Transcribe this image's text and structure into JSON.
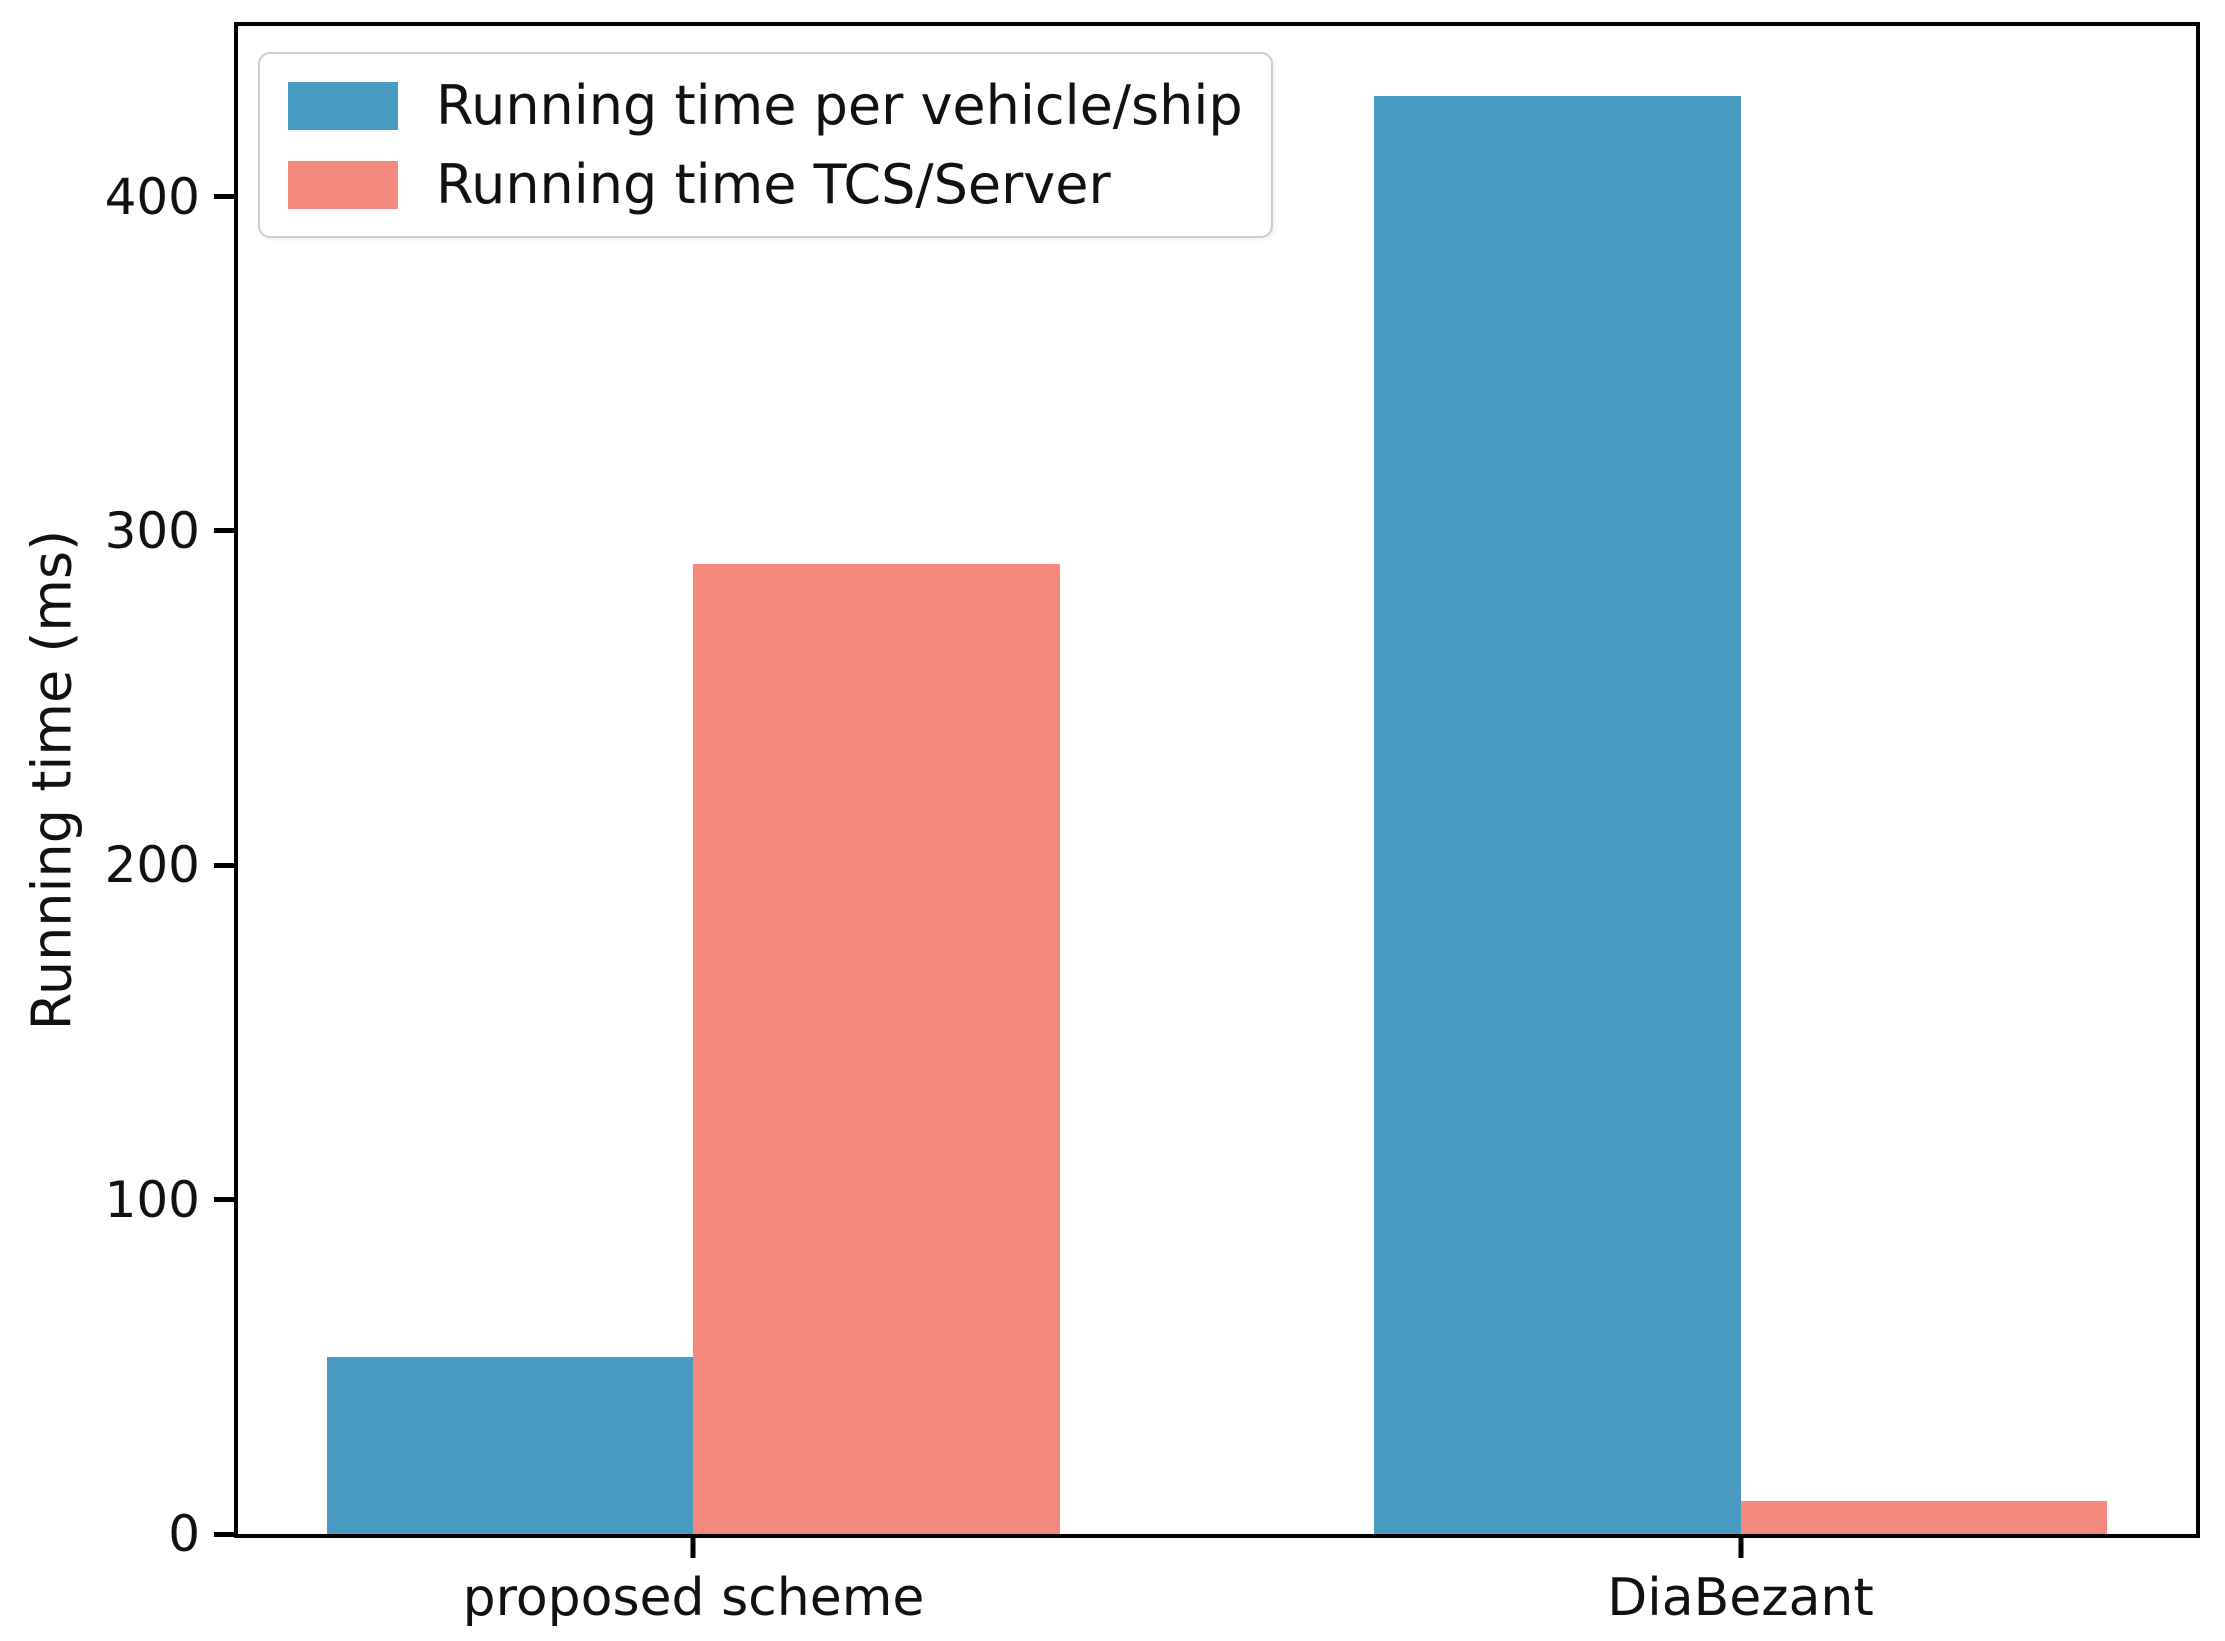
{
  "chart_data": {
    "type": "bar",
    "title": "",
    "categories": [
      "proposed scheme",
      "DiaBezant"
    ],
    "series": [
      {
        "name": "Running time per vehicle/ship",
        "color": "#4A9BC4",
        "values": [
          53,
          430
        ]
      },
      {
        "name": "Running time TCS/Server",
        "color": "#F6897D",
        "values": [
          290,
          10
        ]
      }
    ],
    "xlabel": "",
    "ylabel": "Running time (ms)",
    "yticks": [
      0,
      100,
      200,
      300,
      400
    ],
    "ylim": [
      0,
      451
    ],
    "xlim": [
      -0.435,
      1.435
    ],
    "bar_width": 0.35,
    "grid": false,
    "legend_position": "upper left",
    "colors": {
      "spine": "#000000",
      "text": "#111111",
      "legend_border": "#cccccc",
      "background": "#ffffff"
    }
  }
}
